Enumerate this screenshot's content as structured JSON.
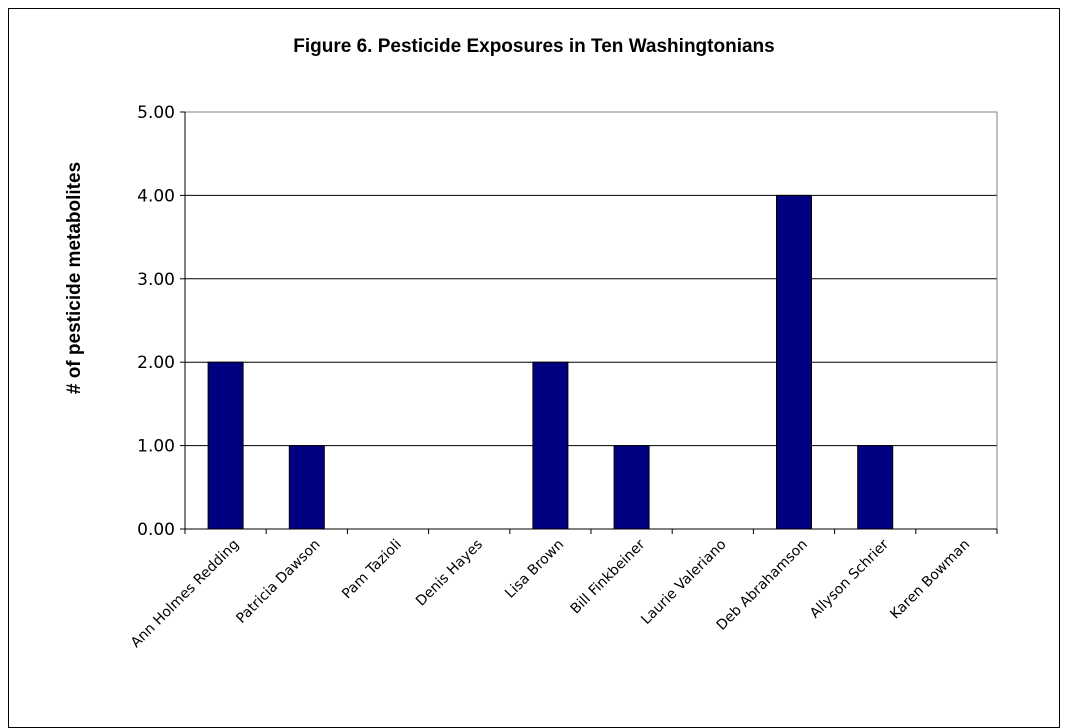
{
  "chart_data": {
    "type": "bar",
    "title": "Figure 6.  Pesticide Exposures in Ten Washingtonians",
    "xlabel": "",
    "ylabel": "# of pesticide metabolites",
    "categories": [
      "Ann  Holmes Redding",
      "Patricia  Dawson",
      "Pam  Tazioli",
      "Denis  Hayes",
      "Lisa  Brown",
      "Bill  Finkbeiner",
      "Laurie  Valeriano",
      "Deb  Abrahamson",
      "Allyson  Schrier",
      "Karen  Bowman"
    ],
    "values": [
      2,
      1,
      0,
      0,
      2,
      1,
      0,
      4,
      1,
      0
    ],
    "ylim": [
      0,
      5
    ],
    "yticks": [
      "0.00",
      "1.00",
      "2.00",
      "3.00",
      "4.00",
      "5.00"
    ],
    "grid": true,
    "legend": "none",
    "bar_color": "#000080"
  }
}
